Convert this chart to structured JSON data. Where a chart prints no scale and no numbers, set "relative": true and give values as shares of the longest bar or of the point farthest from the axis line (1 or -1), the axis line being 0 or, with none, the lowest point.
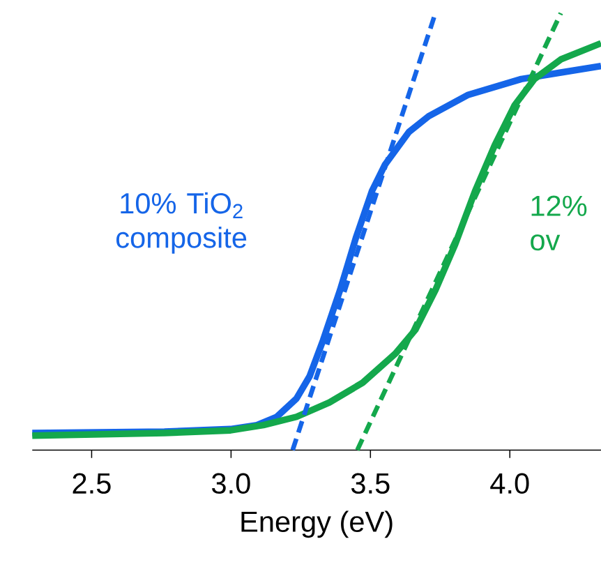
{
  "chart_data": {
    "type": "line",
    "relative": true,
    "xlabel": "Energy (eV)",
    "xlim": [
      2.287,
      4.327
    ],
    "xticks": [
      2.5,
      {
        "value": 3,
        "label": "3.0"
      },
      3.5,
      {
        "value": 4,
        "label": "4.0"
      }
    ],
    "grid": false,
    "series": [
      {
        "name": "10% TiO$_{2}$ composite",
        "color": "#1565e8",
        "line_style": "solid",
        "x": [
          2.287,
          2.761,
          2.998,
          3.093,
          3.164,
          3.235,
          3.282,
          3.33,
          3.391,
          3.448,
          3.505,
          3.552,
          3.638,
          3.709,
          3.851,
          4.041,
          4.183,
          4.327
        ],
        "values": [
          0.039,
          0.042,
          0.048,
          0.057,
          0.076,
          0.118,
          0.169,
          0.251,
          0.366,
          0.486,
          0.592,
          0.653,
          0.728,
          0.764,
          0.813,
          0.849,
          0.864,
          0.879
        ]
      },
      {
        "name": "12% ov",
        "color": "#14a84c",
        "line_style": "solid",
        "x": [
          2.287,
          2.761,
          2.998,
          3.116,
          3.235,
          3.353,
          3.472,
          3.59,
          3.661,
          3.733,
          3.804,
          3.875,
          3.946,
          4.017,
          4.088,
          4.183,
          4.327
        ],
        "values": [
          0.033,
          0.039,
          0.045,
          0.057,
          0.076,
          0.109,
          0.154,
          0.221,
          0.275,
          0.366,
          0.471,
          0.592,
          0.698,
          0.789,
          0.849,
          0.894,
          0.931
        ]
      },
      {
        "type": "line",
        "color": "#1565e8",
        "line_style": "dashed",
        "x": [
          3.221,
          3.733
        ],
        "values": [
          0,
          1
        ]
      },
      {
        "type": "line",
        "color": "#14a84c",
        "line_style": "dashed",
        "x": [
          3.453,
          4.183
        ],
        "values": [
          0,
          1
        ]
      }
    ]
  }
}
